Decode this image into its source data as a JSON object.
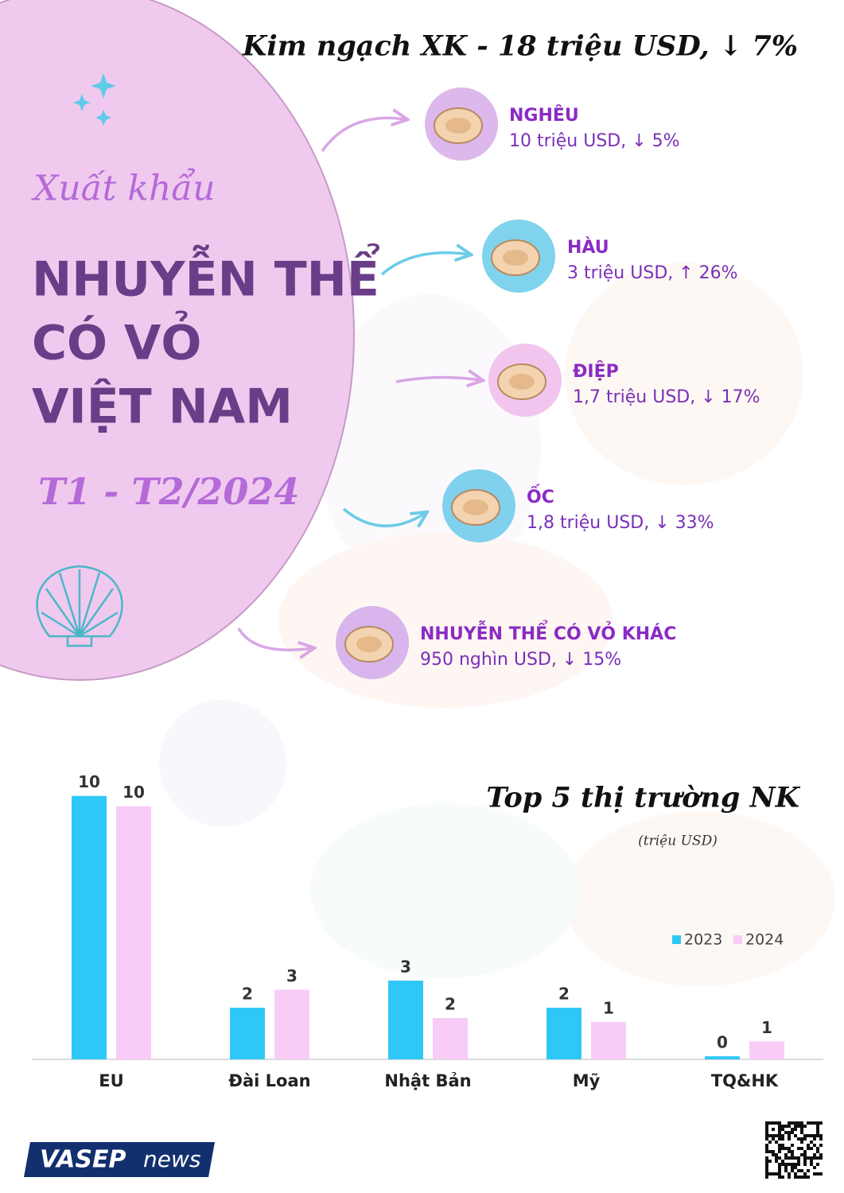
{
  "header": {
    "title": "Kim ngạch XK - 18 triệu USD, ↓ 7%"
  },
  "intro": {
    "kicker": "Xuất khẩu",
    "title_lines": [
      "NHUYỄN THỂ",
      "CÓ VỎ",
      "VIỆT NAM"
    ],
    "period": "T1 - T2/2024"
  },
  "products": [
    {
      "name": "NGHÊU",
      "detail": "10 triệu USD, ↓ 5%"
    },
    {
      "name": "HÀU",
      "detail": "3 triệu USD, ↑ 26%"
    },
    {
      "name": "ĐIỆP",
      "detail": "1,7 triệu USD,  ↓ 17%"
    },
    {
      "name": "ỐC",
      "detail": "1,8 triệu USD, ↓ 33%"
    },
    {
      "name": "NHUYỄN THỂ CÓ VỎ KHÁC",
      "detail": "950 nghìn USD, ↓ 15%"
    }
  ],
  "chart_data": {
    "type": "bar",
    "title": "Top 5 thị trường NK",
    "subtitle": "(triệu USD)",
    "categories": [
      "EU",
      "Đài Loan",
      "Nhật Bản",
      "Mỹ",
      "TQ&HK"
    ],
    "series": [
      {
        "name": "2023",
        "color": "#2fc8f6",
        "values": [
          10.2,
          2.0,
          3.05,
          2.0,
          0.12
        ],
        "value_labels": [
          "10",
          "2",
          "3",
          "2",
          "0"
        ]
      },
      {
        "name": "2024",
        "color": "#f9ccf7",
        "values": [
          9.8,
          2.7,
          1.6,
          1.45,
          0.7
        ],
        "value_labels": [
          "10",
          "3",
          "2",
          "1",
          "1"
        ]
      }
    ],
    "ylim": [
      0,
      10.5
    ],
    "legend": "right"
  },
  "footer": {
    "brand": "VASEP",
    "brand_suffix": "news"
  }
}
